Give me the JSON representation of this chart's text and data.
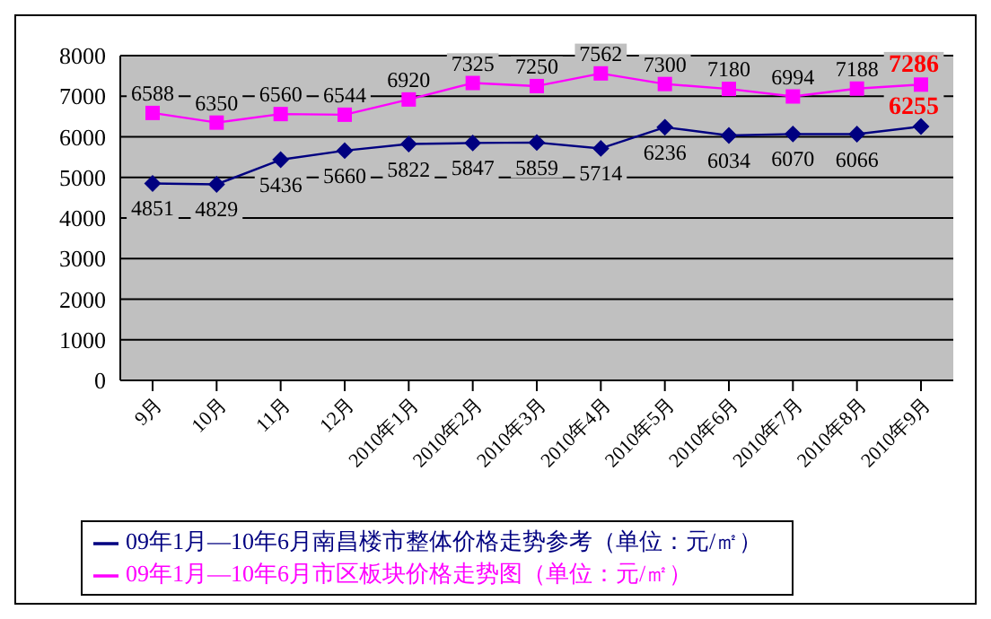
{
  "chart_data": {
    "type": "line",
    "categories": [
      "9月",
      "10月",
      "11月",
      "12月",
      "2010年1月",
      "2010年2月",
      "2010年3月",
      "2010年4月",
      "2010年5月",
      "2010年6月",
      "2010年7月",
      "2010年8月",
      "2010年9月"
    ],
    "series": [
      {
        "name": "09年1月—10年6月南昌楼市整体价格走势参考（单位：元/㎡）",
        "color": "#000080",
        "marker": "diamond",
        "values": [
          4851,
          4829,
          5436,
          5660,
          5822,
          5847,
          5859,
          5714,
          6236,
          6034,
          6070,
          6066,
          6255
        ]
      },
      {
        "name": "09年1月—10年6月市区板块价格走势图（单位：元/㎡）",
        "color": "#ff00ff",
        "marker": "square",
        "values": [
          6588,
          6350,
          6560,
          6544,
          6920,
          7325,
          7250,
          7562,
          7300,
          7180,
          6994,
          7188,
          7286
        ]
      }
    ],
    "ylim": [
      0,
      8000
    ],
    "yticks": [
      0,
      1000,
      2000,
      3000,
      4000,
      5000,
      6000,
      7000,
      8000
    ],
    "grid": "y",
    "legend": "bottom",
    "data_labels": true
  }
}
